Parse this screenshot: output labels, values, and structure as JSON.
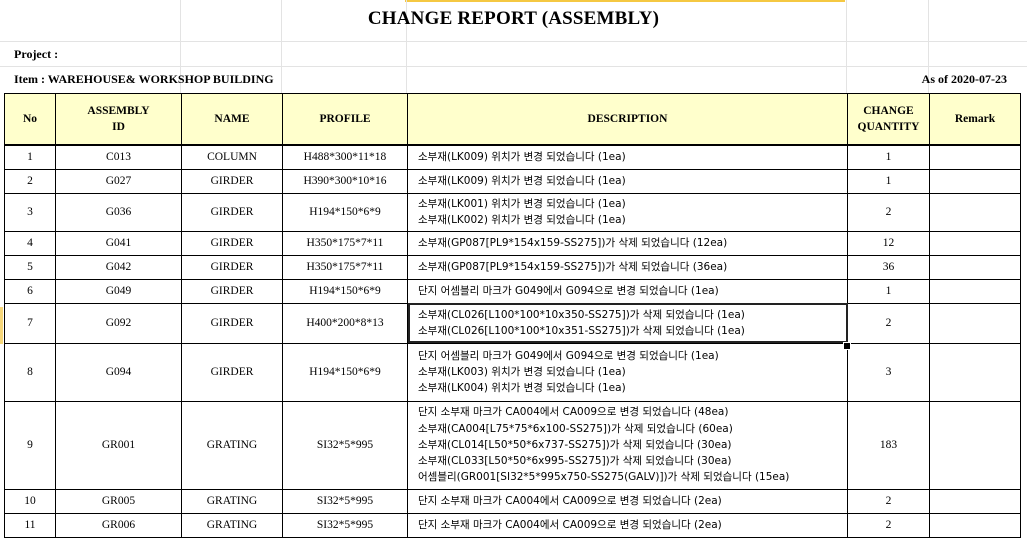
{
  "title": "CHANGE REPORT (ASSEMBLY)",
  "project_label": "Project :",
  "item_label": "Item : WAREHOUSE& WORKSHOP BUILDING",
  "as_of": "As of 2020-07-23",
  "columns": {
    "no": "No",
    "assembly_id_1": "ASSEMBLY",
    "assembly_id_2": "ID",
    "name": "NAME",
    "profile": "PROFILE",
    "description": "DESCRIPTION",
    "change_qty_1": "CHANGE",
    "change_qty_2": "QUANTITY",
    "remark": "Remark"
  },
  "rows": [
    {
      "no": "1",
      "id": "C013",
      "name": "COLUMN",
      "profile": "H488*300*11*18",
      "desc": [
        "소부재(LK009) 위치가 변경 되었습니다 (1ea)"
      ],
      "qty": "1",
      "remark": ""
    },
    {
      "no": "2",
      "id": "G027",
      "name": "GIRDER",
      "profile": "H390*300*10*16",
      "desc": [
        "소부재(LK009) 위치가 변경 되었습니다 (1ea)"
      ],
      "qty": "1",
      "remark": ""
    },
    {
      "no": "3",
      "id": "G036",
      "name": "GIRDER",
      "profile": "H194*150*6*9",
      "desc": [
        "소부재(LK001) 위치가 변경 되었습니다 (1ea)",
        "소부재(LK002) 위치가 변경 되었습니다 (1ea)"
      ],
      "qty": "2",
      "remark": ""
    },
    {
      "no": "4",
      "id": "G041",
      "name": "GIRDER",
      "profile": "H350*175*7*11",
      "desc": [
        "소부재(GP087[PL9*154x159-SS275])가 삭제 되었습니다 (12ea)"
      ],
      "qty": "12",
      "remark": ""
    },
    {
      "no": "5",
      "id": "G042",
      "name": "GIRDER",
      "profile": "H350*175*7*11",
      "desc": [
        "소부재(GP087[PL9*154x159-SS275])가 삭제 되었습니다 (36ea)"
      ],
      "qty": "36",
      "remark": ""
    },
    {
      "no": "6",
      "id": "G049",
      "name": "GIRDER",
      "profile": "H194*150*6*9",
      "desc": [
        "단지 어셈블리 마크가 G049에서 G094으로 변경 되었습니다 (1ea)"
      ],
      "qty": "1",
      "remark": ""
    },
    {
      "no": "7",
      "id": "G092",
      "name": "GIRDER",
      "profile": "H400*200*8*13",
      "desc": [
        "소부재(CL026[L100*100*10x350-SS275])가 삭제 되었습니다 (1ea)",
        "소부재(CL026[L100*100*10x351-SS275])가 삭제 되었습니다 (1ea)"
      ],
      "qty": "2",
      "remark": ""
    },
    {
      "no": "8",
      "id": "G094",
      "name": "GIRDER",
      "profile": "H194*150*6*9",
      "desc": [
        "단지 어셈블리 마크가 G049에서 G094으로 변경 되었습니다 (1ea)",
        "소부재(LK003) 위치가 변경 되었습니다 (1ea)",
        "소부재(LK004) 위치가 변경 되었습니다 (1ea)"
      ],
      "qty": "3",
      "remark": ""
    },
    {
      "no": "9",
      "id": "GR001",
      "name": "GRATING",
      "profile": "SI32*5*995",
      "desc": [
        "단지 소부재 마크가 CA004에서 CA009으로 변경 되었습니다 (48ea)",
        "소부재(CA004[L75*75*6x100-SS275])가 삭제 되었습니다 (60ea)",
        "소부재(CL014[L50*50*6x737-SS275])가 삭제 되었습니다 (30ea)",
        "소부재(CL033[L50*50*6x995-SS275])가 삭제 되었습니다 (30ea)",
        "어셈블리(GR001[SI32*5*995x750-SS275(GALV)])가 삭제 되었습니다 (15ea)"
      ],
      "qty": "183",
      "remark": ""
    },
    {
      "no": "10",
      "id": "GR005",
      "name": "GRATING",
      "profile": "SI32*5*995",
      "desc": [
        "단지 소부재 마크가 CA004에서 CA009으로 변경 되었습니다 (2ea)"
      ],
      "qty": "2",
      "remark": ""
    },
    {
      "no": "11",
      "id": "GR006",
      "name": "GRATING",
      "profile": "SI32*5*995",
      "desc": [
        "단지 소부재 마크가 CA004에서 CA009으로 변경 되었습니다 (2ea)"
      ],
      "qty": "2",
      "remark": ""
    }
  ]
}
